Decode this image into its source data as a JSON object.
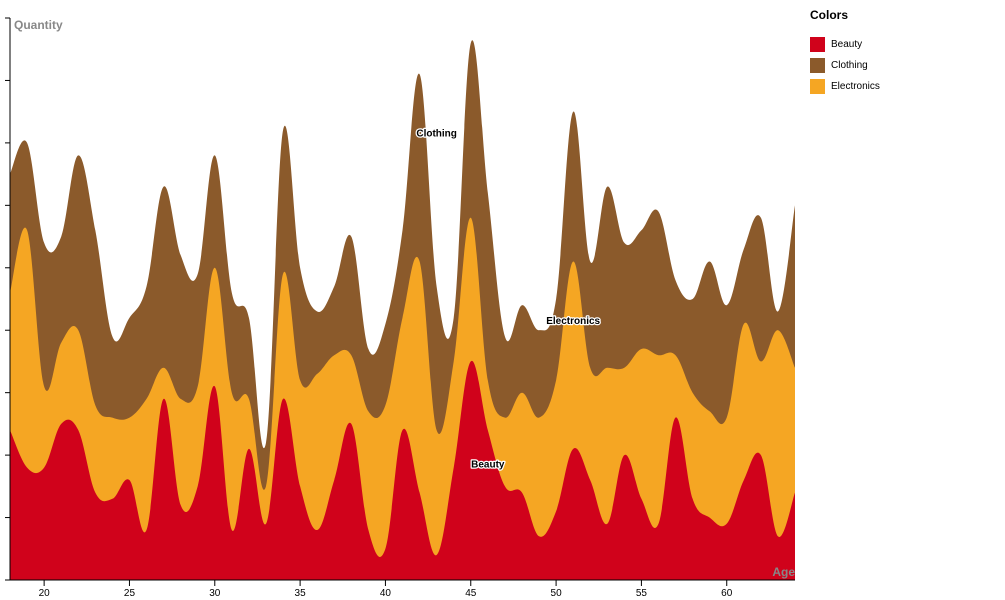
{
  "chart_data": {
    "type": "area",
    "subtype": "stacked-streamgraph",
    "ylabel": "Quantity",
    "xlabel": "Age",
    "x": [
      18,
      19,
      20,
      21,
      22,
      23,
      24,
      25,
      26,
      27,
      28,
      29,
      30,
      31,
      32,
      33,
      34,
      35,
      36,
      37,
      38,
      39,
      40,
      41,
      42,
      43,
      44,
      45,
      46,
      47,
      48,
      49,
      50,
      51,
      52,
      53,
      54,
      55,
      56,
      57,
      58,
      59,
      60,
      61,
      62,
      63,
      64
    ],
    "xlim": [
      18,
      64
    ],
    "x_ticks": [
      20,
      25,
      30,
      35,
      40,
      45,
      50,
      55,
      60
    ],
    "ylim": [
      0,
      9
    ],
    "y_ticks_count": 10,
    "grid": false,
    "legend_title": "Colors",
    "legend_position": "right",
    "series": [
      {
        "name": "Beauty",
        "color": "#d0021b",
        "values": [
          2.4,
          1.8,
          1.8,
          2.5,
          2.4,
          1.4,
          1.3,
          1.6,
          0.8,
          2.9,
          1.2,
          1.5,
          3.1,
          0.8,
          2.1,
          0.9,
          2.9,
          1.5,
          0.8,
          1.6,
          2.5,
          0.8,
          0.5,
          2.4,
          1.4,
          0.4,
          1.8,
          3.5,
          2.4,
          1.5,
          1.4,
          0.7,
          1.1,
          2.1,
          1.6,
          0.9,
          2.0,
          1.3,
          0.9,
          2.6,
          1.3,
          1.0,
          0.9,
          1.6,
          2.0,
          0.7,
          1.4
        ]
      },
      {
        "name": "Electronics",
        "color": "#f5a623",
        "values": [
          2.2,
          3.8,
          1.3,
          1.3,
          1.6,
          1.4,
          1.3,
          1.0,
          2.1,
          0.5,
          1.7,
          1.6,
          1.9,
          2.2,
          0.8,
          0.6,
          2.0,
          1.7,
          2.5,
          2.0,
          1.1,
          1.9,
          2.3,
          1.8,
          3.7,
          2.0,
          1.7,
          2.3,
          0.8,
          1.1,
          1.6,
          1.9,
          2.1,
          3.0,
          1.8,
          2.5,
          1.4,
          2.4,
          2.7,
          1.0,
          1.7,
          1.7,
          1.7,
          2.5,
          1.5,
          3.3,
          2.0
        ]
      },
      {
        "name": "Clothing",
        "color": "#8b5a2b",
        "values": [
          1.9,
          1.4,
          2.3,
          1.7,
          2.8,
          2.8,
          1.3,
          1.6,
          1.8,
          2.9,
          2.3,
          1.8,
          1.8,
          1.6,
          1.3,
          0.7,
          2.3,
          1.8,
          1.0,
          1.1,
          1.9,
          1.0,
          1.3,
          1.4,
          3.0,
          2.3,
          0.7,
          2.8,
          3.0,
          1.3,
          1.4,
          1.4,
          1.3,
          2.4,
          1.7,
          2.9,
          2.0,
          1.9,
          2.3,
          1.2,
          1.5,
          2.4,
          1.8,
          1.2,
          2.3,
          0.3,
          2.6
        ]
      }
    ],
    "labels": [
      {
        "text": "Clothing",
        "series": "Clothing",
        "x": 43,
        "y": 7.1
      },
      {
        "text": "Electronics",
        "series": "Electronics",
        "x": 51,
        "y": 4.1
      },
      {
        "text": "Beauty",
        "series": "Beauty",
        "x": 46,
        "y": 1.8
      }
    ]
  }
}
